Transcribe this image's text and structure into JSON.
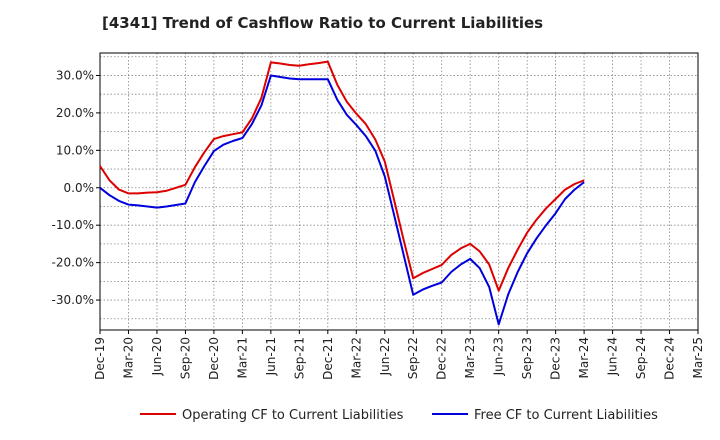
{
  "chart_data": {
    "type": "line",
    "title": "[4341]  Trend of Cashflow Ratio to Current Liabilities",
    "xlabel": "",
    "ylabel": "",
    "x_tick_labels": [
      "Dec-19",
      "Mar-20",
      "Jun-20",
      "Sep-20",
      "Dec-20",
      "Mar-21",
      "Jun-21",
      "Sep-21",
      "Dec-21",
      "Mar-22",
      "Jun-22",
      "Sep-22",
      "Dec-22",
      "Mar-23",
      "Jun-23",
      "Sep-23",
      "Dec-23",
      "Mar-24",
      "Jun-24",
      "Sep-24",
      "Dec-24",
      "Mar-25"
    ],
    "y_tick_labels": [
      "30.0%",
      "20.0%",
      "10.0%",
      "0.0%",
      "-10.0%",
      "-20.0%",
      "-30.0%"
    ],
    "y_ticks": [
      30,
      20,
      10,
      0,
      -10,
      -20,
      -30
    ],
    "ylim": [
      -38,
      36
    ],
    "grid": true,
    "legend_position": "bottom",
    "x": [
      "Dec-19",
      "Jan-20",
      "Feb-20",
      "Mar-20",
      "Apr-20",
      "May-20",
      "Jun-20",
      "Jul-20",
      "Aug-20",
      "Sep-20",
      "Oct-20",
      "Nov-20",
      "Dec-20",
      "Jan-21",
      "Feb-21",
      "Mar-21",
      "Apr-21",
      "May-21",
      "Jun-21",
      "Jul-21",
      "Aug-21",
      "Sep-21",
      "Oct-21",
      "Nov-21",
      "Dec-21",
      "Jan-22",
      "Feb-22",
      "Mar-22",
      "Apr-22",
      "May-22",
      "Jun-22",
      "Jul-22",
      "Aug-22",
      "Sep-22",
      "Oct-22",
      "Nov-22",
      "Dec-22",
      "Jan-23",
      "Feb-23",
      "Mar-23",
      "Apr-23",
      "May-23",
      "Jun-23",
      "Jul-23",
      "Aug-23",
      "Sep-23",
      "Oct-23",
      "Nov-23",
      "Dec-23",
      "Jan-24",
      "Feb-24",
      "Mar-24"
    ],
    "series": [
      {
        "name": "Operating CF to Current Liabilities",
        "color": "#dd0000",
        "values": [
          5.8,
          2.0,
          -0.5,
          -1.5,
          -1.5,
          -1.3,
          -1.2,
          -0.8,
          0.0,
          0.8,
          5.5,
          9.5,
          13.0,
          13.8,
          14.3,
          14.8,
          18.5,
          24.0,
          33.5,
          33.2,
          32.8,
          32.6,
          33.0,
          33.3,
          33.7,
          27.5,
          23.0,
          19.8,
          17.0,
          12.9,
          7.0,
          -3.5,
          -14.0,
          -24.2,
          -22.8,
          -21.7,
          -20.6,
          -18.0,
          -16.2,
          -15.0,
          -17.0,
          -20.5,
          -27.5,
          -21.5,
          -16.5,
          -12.0,
          -8.5,
          -5.5,
          -3.0,
          -0.5,
          1.0,
          2.0
        ]
      },
      {
        "name": "Free CF to Current Liabilities",
        "color": "#0000dd",
        "values": [
          0.0,
          -2.0,
          -3.5,
          -4.5,
          -4.7,
          -5.0,
          -5.3,
          -5.0,
          -4.6,
          -4.2,
          1.5,
          5.8,
          9.8,
          11.5,
          12.5,
          13.3,
          17.0,
          22.0,
          30.0,
          29.6,
          29.2,
          29.0,
          29.0,
          29.0,
          29.0,
          23.5,
          19.5,
          16.8,
          13.8,
          9.9,
          3.0,
          -7.5,
          -18.0,
          -28.6,
          -27.2,
          -26.2,
          -25.3,
          -22.5,
          -20.5,
          -19.0,
          -21.5,
          -26.5,
          -36.5,
          -28.5,
          -22.5,
          -17.5,
          -13.5,
          -10.0,
          -6.8,
          -3.0,
          -0.5,
          1.5
        ]
      }
    ]
  }
}
